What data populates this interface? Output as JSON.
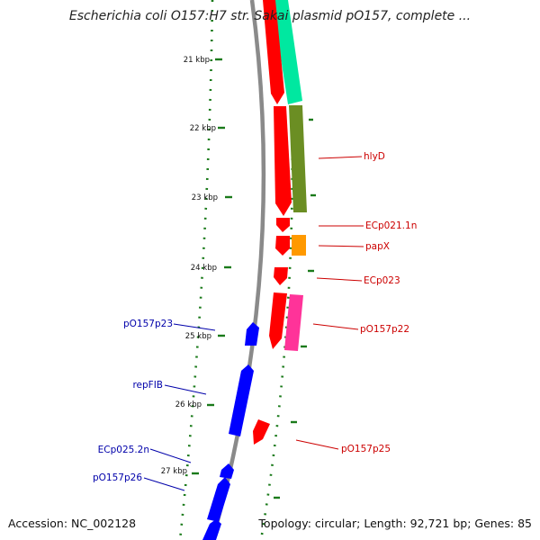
{
  "title": "Escherichia coli O157:H7 str. Sakai plasmid pO157, complete ...",
  "footer": {
    "accession": "Accession: NC_002128",
    "topology": "Topology: circular; Length: 92,721 bp; Genes: 85"
  },
  "scale_labels": [
    "21 kbp",
    "22 kbp",
    "23 kbp",
    "24 kbp",
    "25 kbp",
    "26 kbp",
    "27 kbp"
  ],
  "genes_forward": [
    {
      "name": "hlyD"
    },
    {
      "name": "ECp021.1n"
    },
    {
      "name": "papX"
    },
    {
      "name": "ECp023"
    },
    {
      "name": "pO157p22"
    },
    {
      "name": "pO157p25"
    }
  ],
  "genes_reverse": [
    {
      "name": "pO157p23"
    },
    {
      "name": "repFIB"
    },
    {
      "name": "ECp025.2n"
    },
    {
      "name": "pO157p26"
    }
  ],
  "colors": {
    "forward_cds": "#ff0000",
    "reverse_cds": "#0000ff",
    "backbone": "#888888",
    "ticks": "#1a7a1a",
    "teal_feature": "#00e8a0",
    "olive_feature": "#6b8e23",
    "orange_feature": "#ff9900",
    "pink_feature": "#ff3399"
  }
}
